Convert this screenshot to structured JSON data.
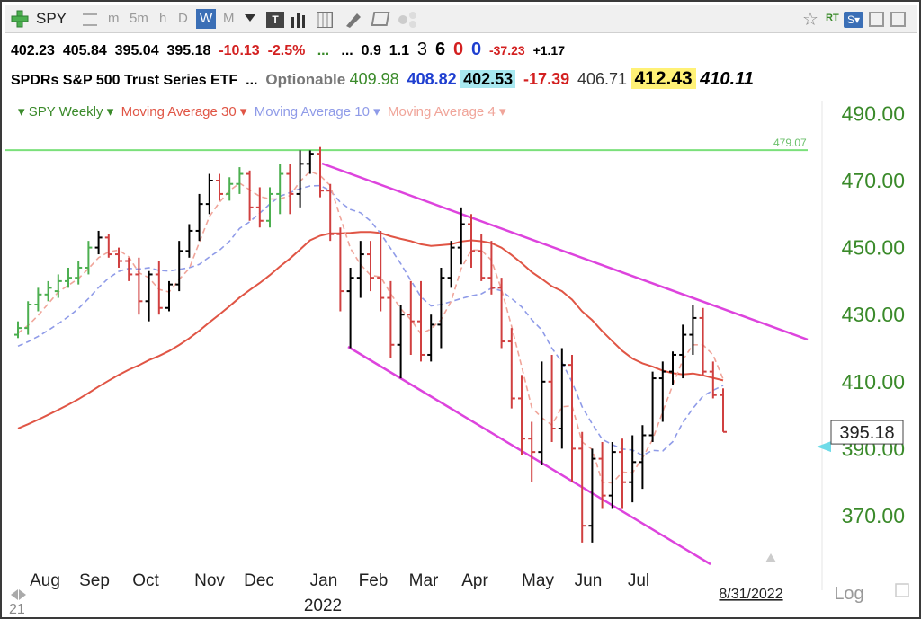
{
  "toolbar": {
    "symbol": "SPY",
    "intervals": [
      "m",
      "5m",
      "h",
      "D",
      "W",
      "M"
    ],
    "selected_interval": "W"
  },
  "quote": {
    "open": "402.23",
    "high": "405.84",
    "low": "395.04",
    "last": "395.18",
    "change": "-10.13",
    "change_pct": "-2.5%",
    "dots1": "...",
    "dots2": "...",
    "v1": "0.9",
    "v2": "1.1",
    "n1": "3",
    "n2": "6",
    "n3": "0",
    "n4": "0",
    "v3": "-37.23",
    "v4": "+1.17"
  },
  "info": {
    "name": "SPDRs S&P 500 Trust Series ETF",
    "dots": "...",
    "optionable": "Optionable",
    "p1": "409.98",
    "p2": "408.82",
    "p3": "402.53",
    "p4": "-17.39",
    "p5": "406.71",
    "p6": "412.43",
    "p7": "410.11"
  },
  "legend": {
    "series_main": "SPY Weekly",
    "ma30": "Moving Average 30",
    "ma10": "Moving Average 10",
    "ma4": "Moving Average 4"
  },
  "colors": {
    "up": "#4caf50",
    "down": "#d04040",
    "black_bar": "#000000",
    "ma30": "#e05545",
    "ma10": "#8f9be8",
    "ma4": "#f0a59a",
    "channel": "#dd44dd",
    "resistance": "#7be07b",
    "y_labels": "#3a8a2a",
    "price_tag": "#6fdbe8"
  },
  "chart_data": {
    "type": "bar",
    "title": "SPY Weekly",
    "x_tick_labels": [
      "Aug",
      "Sep",
      "Oct",
      "Nov",
      "Dec",
      "Jan",
      "Feb",
      "Mar",
      "Apr",
      "May",
      "Jun",
      "Jul"
    ],
    "year_label": "2022",
    "y_ticks": [
      370,
      390,
      410,
      430,
      450,
      470,
      490
    ],
    "y_tick_labels": [
      "370.00",
      "390.00",
      "410.00",
      "430.00",
      "450.00",
      "470.00",
      "490.00"
    ],
    "ylim": [
      361,
      496
    ],
    "resistance_level": 479.07,
    "resistance_label": "479.07",
    "last_price_label": "395.18",
    "last_price": 395.18,
    "date_label": "8/31/2022",
    "scale_label": "Log",
    "corner_label": "21",
    "bars": [
      {
        "o": 424,
        "h": 428,
        "l": 423,
        "c": 426
      },
      {
        "o": 426,
        "h": 434,
        "l": 424,
        "c": 433
      },
      {
        "o": 433,
        "h": 438,
        "l": 431,
        "c": 436
      },
      {
        "o": 436,
        "h": 440,
        "l": 434,
        "c": 438
      },
      {
        "o": 437,
        "h": 442,
        "l": 435,
        "c": 440
      },
      {
        "o": 440,
        "h": 444,
        "l": 438,
        "c": 441
      },
      {
        "o": 441,
        "h": 446,
        "l": 439,
        "c": 444
      },
      {
        "o": 444,
        "h": 452,
        "l": 442,
        "c": 450
      },
      {
        "o": 450,
        "h": 455,
        "l": 448,
        "c": 453
      },
      {
        "o": 453,
        "h": 454,
        "l": 447,
        "c": 448
      },
      {
        "o": 448,
        "h": 450,
        "l": 444,
        "c": 446
      },
      {
        "o": 446,
        "h": 447,
        "l": 440,
        "c": 442
      },
      {
        "o": 442,
        "h": 447,
        "l": 430,
        "c": 434
      },
      {
        "o": 434,
        "h": 443,
        "l": 428,
        "c": 442
      },
      {
        "o": 442,
        "h": 446,
        "l": 430,
        "c": 432
      },
      {
        "o": 432,
        "h": 440,
        "l": 431,
        "c": 439
      },
      {
        "o": 439,
        "h": 452,
        "l": 437,
        "c": 449
      },
      {
        "o": 449,
        "h": 457,
        "l": 447,
        "c": 455
      },
      {
        "o": 455,
        "h": 466,
        "l": 452,
        "c": 463
      },
      {
        "o": 463,
        "h": 472,
        "l": 460,
        "c": 470
      },
      {
        "o": 470,
        "h": 472,
        "l": 464,
        "c": 466
      },
      {
        "o": 466,
        "h": 471,
        "l": 464,
        "c": 469
      },
      {
        "o": 469,
        "h": 474,
        "l": 466,
        "c": 472
      },
      {
        "o": 472,
        "h": 473,
        "l": 458,
        "c": 462
      },
      {
        "o": 462,
        "h": 468,
        "l": 456,
        "c": 458
      },
      {
        "o": 458,
        "h": 468,
        "l": 456,
        "c": 466
      },
      {
        "o": 466,
        "h": 475,
        "l": 460,
        "c": 472
      },
      {
        "o": 472,
        "h": 475,
        "l": 460,
        "c": 466
      },
      {
        "o": 466,
        "h": 479,
        "l": 462,
        "c": 475
      },
      {
        "o": 475,
        "h": 479,
        "l": 472,
        "c": 478
      },
      {
        "o": 478,
        "h": 480,
        "l": 465,
        "c": 467
      },
      {
        "o": 467,
        "h": 469,
        "l": 452,
        "c": 454
      },
      {
        "o": 454,
        "h": 456,
        "l": 431,
        "c": 437
      },
      {
        "o": 437,
        "h": 444,
        "l": 420,
        "c": 441
      },
      {
        "o": 441,
        "h": 452,
        "l": 435,
        "c": 448
      },
      {
        "o": 448,
        "h": 452,
        "l": 437,
        "c": 441
      },
      {
        "o": 441,
        "h": 455,
        "l": 431,
        "c": 435
      },
      {
        "o": 435,
        "h": 440,
        "l": 417,
        "c": 421
      },
      {
        "o": 421,
        "h": 433,
        "l": 411,
        "c": 430
      },
      {
        "o": 430,
        "h": 440,
        "l": 418,
        "c": 428
      },
      {
        "o": 428,
        "h": 440,
        "l": 416,
        "c": 418
      },
      {
        "o": 418,
        "h": 430,
        "l": 416,
        "c": 427
      },
      {
        "o": 427,
        "h": 444,
        "l": 420,
        "c": 441
      },
      {
        "o": 441,
        "h": 452,
        "l": 438,
        "c": 450
      },
      {
        "o": 450,
        "h": 462,
        "l": 445,
        "c": 457
      },
      {
        "o": 457,
        "h": 460,
        "l": 444,
        "c": 449
      },
      {
        "o": 449,
        "h": 454,
        "l": 440,
        "c": 441
      },
      {
        "o": 441,
        "h": 452,
        "l": 436,
        "c": 438
      },
      {
        "o": 438,
        "h": 441,
        "l": 420,
        "c": 422
      },
      {
        "o": 422,
        "h": 426,
        "l": 402,
        "c": 405
      },
      {
        "o": 405,
        "h": 412,
        "l": 388,
        "c": 393
      },
      {
        "o": 393,
        "h": 398,
        "l": 380,
        "c": 389
      },
      {
        "o": 389,
        "h": 416,
        "l": 385,
        "c": 410
      },
      {
        "o": 410,
        "h": 418,
        "l": 392,
        "c": 396
      },
      {
        "o": 396,
        "h": 420,
        "l": 390,
        "c": 415
      },
      {
        "o": 415,
        "h": 418,
        "l": 380,
        "c": 390
      },
      {
        "o": 390,
        "h": 395,
        "l": 362,
        "c": 367
      },
      {
        "o": 367,
        "h": 390,
        "l": 362,
        "c": 387
      },
      {
        "o": 387,
        "h": 392,
        "l": 372,
        "c": 376
      },
      {
        "o": 376,
        "h": 392,
        "l": 372,
        "c": 389
      },
      {
        "o": 389,
        "h": 393,
        "l": 372,
        "c": 380
      },
      {
        "o": 380,
        "h": 394,
        "l": 374,
        "c": 386
      },
      {
        "o": 386,
        "h": 397,
        "l": 378,
        "c": 394
      },
      {
        "o": 394,
        "h": 413,
        "l": 392,
        "c": 411
      },
      {
        "o": 411,
        "h": 416,
        "l": 398,
        "c": 413
      },
      {
        "o": 413,
        "h": 419,
        "l": 409,
        "c": 418
      },
      {
        "o": 418,
        "h": 427,
        "l": 411,
        "c": 424
      },
      {
        "o": 424,
        "h": 433,
        "l": 418,
        "c": 429
      },
      {
        "o": 429,
        "h": 432,
        "l": 412,
        "c": 413
      },
      {
        "o": 413,
        "h": 416,
        "l": 405,
        "c": 406
      },
      {
        "o": 406,
        "h": 408,
        "l": 395,
        "c": 395
      }
    ]
  }
}
